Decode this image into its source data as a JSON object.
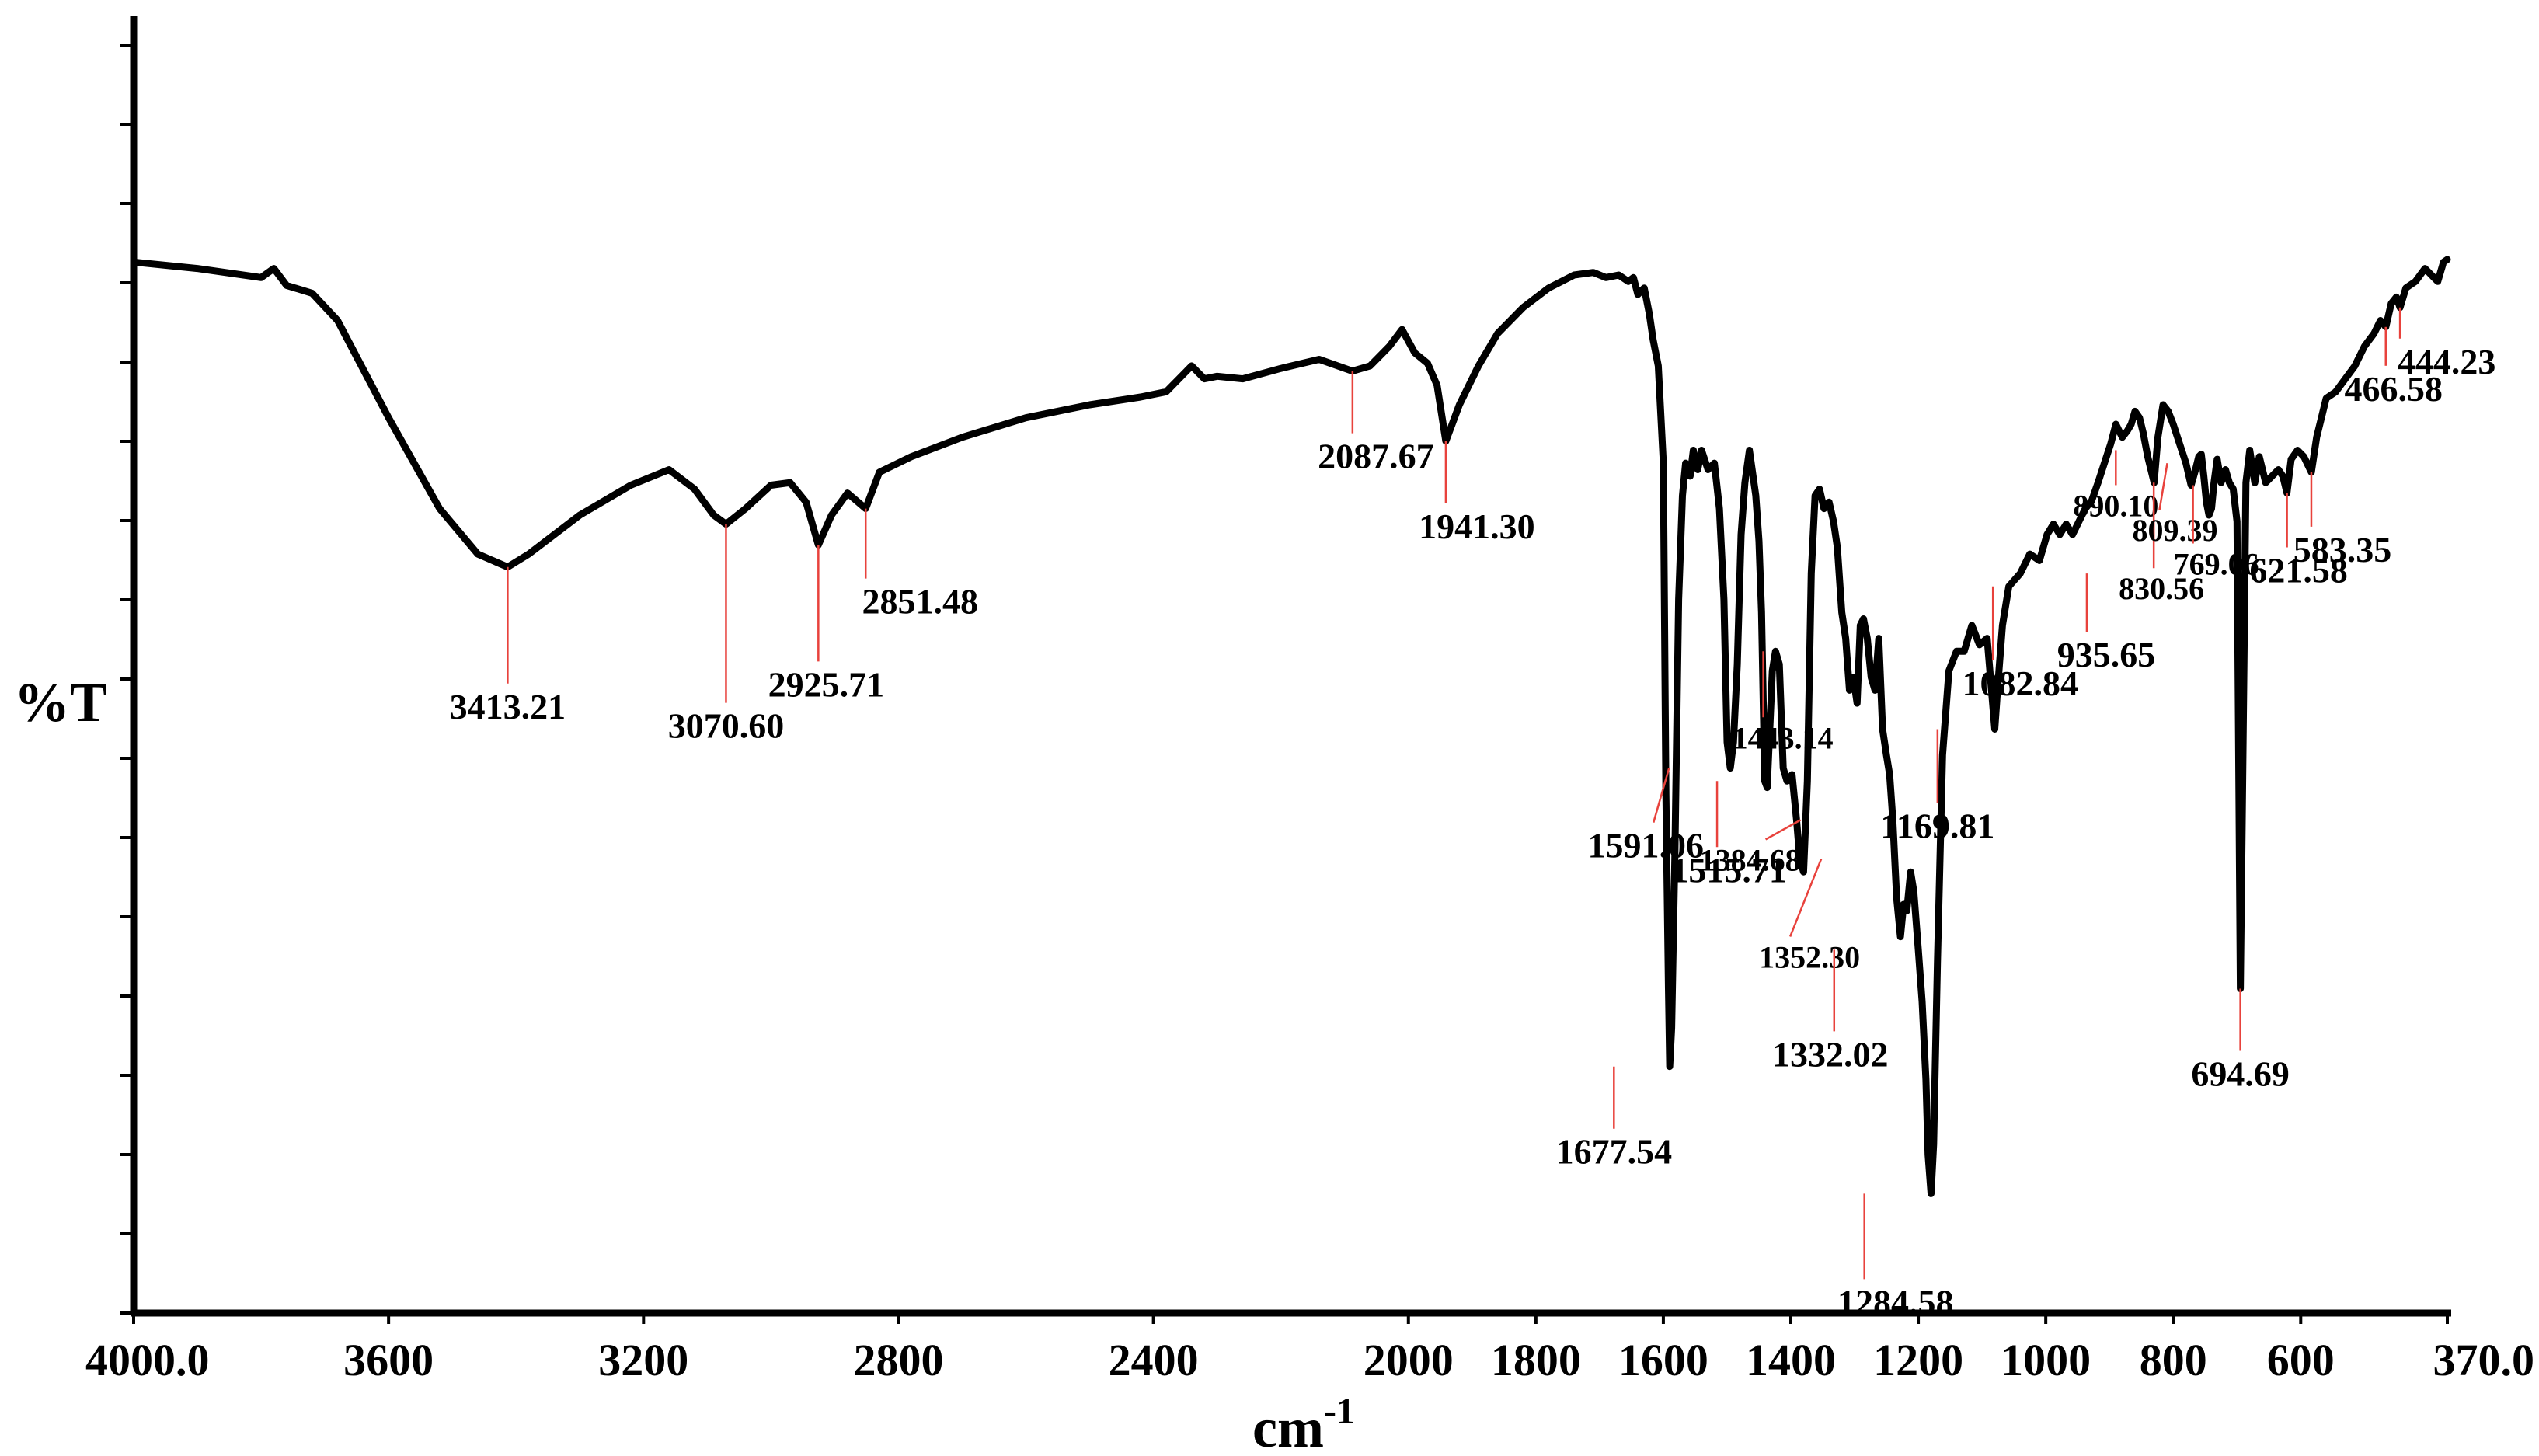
{
  "chart_data": {
    "type": "line",
    "xlabel": "cm",
    "xlabel_superscript": "-1",
    "ylabel": "%T",
    "xlim": [
      4000.0,
      370.0
    ],
    "ylim": [
      0,
      100
    ],
    "grid": false,
    "x_ticks": [
      "4000.0",
      "3600",
      "3200",
      "2800",
      "2400",
      "2000",
      "1800",
      "1600",
      "1400",
      "1200",
      "1000",
      "800",
      "600",
      "370.0"
    ],
    "series": [
      {
        "color": "#000000",
        "points": [
          [
            4000,
            81
          ],
          [
            3900,
            80.5
          ],
          [
            3800,
            79.8
          ],
          [
            3780,
            80.5
          ],
          [
            3760,
            79.2
          ],
          [
            3720,
            78.6
          ],
          [
            3680,
            76.5
          ],
          [
            3600,
            69
          ],
          [
            3520,
            62
          ],
          [
            3460,
            58.5
          ],
          [
            3413.21,
            57.5
          ],
          [
            3380,
            58.5
          ],
          [
            3300,
            61.5
          ],
          [
            3220,
            63.8
          ],
          [
            3160,
            65.0
          ],
          [
            3120,
            63.5
          ],
          [
            3090,
            61.5
          ],
          [
            3070.6,
            60.8
          ],
          [
            3040,
            62.0
          ],
          [
            3000,
            63.8
          ],
          [
            2970,
            64.0
          ],
          [
            2945,
            62.5
          ],
          [
            2925.71,
            59.2
          ],
          [
            2905,
            61.5
          ],
          [
            2880,
            63.2
          ],
          [
            2851.48,
            62.0
          ],
          [
            2830,
            64.8
          ],
          [
            2780,
            66.0
          ],
          [
            2700,
            67.5
          ],
          [
            2600,
            69.0
          ],
          [
            2500,
            70.0
          ],
          [
            2420,
            70.6
          ],
          [
            2380,
            71.0
          ],
          [
            2360,
            72.0
          ],
          [
            2340,
            73.0
          ],
          [
            2320,
            72.0
          ],
          [
            2300,
            72.2
          ],
          [
            2260,
            72.0
          ],
          [
            2200,
            72.8
          ],
          [
            2140,
            73.5
          ],
          [
            2087.67,
            72.6
          ],
          [
            2060,
            73.0
          ],
          [
            2030,
            74.5
          ],
          [
            2010,
            75.8
          ],
          [
            1990,
            74.0
          ],
          [
            1970,
            73.2
          ],
          [
            1955,
            71.5
          ],
          [
            1941.3,
            67.2
          ],
          [
            1920,
            70.0
          ],
          [
            1890,
            73.0
          ],
          [
            1860,
            75.5
          ],
          [
            1820,
            77.5
          ],
          [
            1780,
            79.0
          ],
          [
            1740,
            80.0
          ],
          [
            1710,
            80.2
          ],
          [
            1690,
            79.8
          ],
          [
            1670,
            80.0
          ],
          [
            1655,
            79.5
          ],
          [
            1647,
            79.8
          ],
          [
            1640,
            78.5
          ],
          [
            1630,
            79.0
          ],
          [
            1622,
            77.0
          ],
          [
            1616,
            75.0
          ],
          [
            1608,
            73.0
          ],
          [
            1600,
            65.5
          ],
          [
            1596,
            40.0
          ],
          [
            1592,
            25.0
          ],
          [
            1590,
            19.0
          ],
          [
            1587,
            22.0
          ],
          [
            1582,
            35.0
          ],
          [
            1576,
            55.0
          ],
          [
            1570,
            63.0
          ],
          [
            1565,
            65.5
          ],
          [
            1558,
            64.5
          ],
          [
            1553,
            66.5
          ],
          [
            1546,
            65.0
          ],
          [
            1540,
            66.5
          ],
          [
            1530,
            65.0
          ],
          [
            1520,
            65.5
          ],
          [
            1512,
            62.0
          ],
          [
            1505,
            55.0
          ],
          [
            1500,
            44.0
          ],
          [
            1495,
            42.0
          ],
          [
            1490,
            44.0
          ],
          [
            1484,
            50.0
          ],
          [
            1478,
            60.0
          ],
          [
            1472,
            64.0
          ],
          [
            1465,
            66.5
          ],
          [
            1455,
            63.0
          ],
          [
            1450,
            59.5
          ],
          [
            1446,
            54.0
          ],
          [
            1441,
            41.0
          ],
          [
            1437,
            40.5
          ],
          [
            1433,
            45.0
          ],
          [
            1429,
            49.5
          ],
          [
            1424,
            51.0
          ],
          [
            1418,
            50.0
          ],
          [
            1412,
            42.0
          ],
          [
            1406,
            41.0
          ],
          [
            1398,
            41.5
          ],
          [
            1391,
            38.0
          ],
          [
            1386,
            35.0
          ],
          [
            1380,
            34.0
          ],
          [
            1374,
            41.0
          ],
          [
            1368,
            57.0
          ],
          [
            1362,
            63.0
          ],
          [
            1355,
            63.5
          ],
          [
            1348,
            62.0
          ],
          [
            1340,
            62.5
          ],
          [
            1333,
            61.0
          ],
          [
            1327,
            59.0
          ],
          [
            1320,
            54.0
          ],
          [
            1314,
            52.0
          ],
          [
            1308,
            48.0
          ],
          [
            1302,
            49.0
          ],
          [
            1296,
            47.0
          ],
          [
            1291,
            53.0
          ],
          [
            1286,
            53.5
          ],
          [
            1280,
            52.0
          ],
          [
            1274,
            49.0
          ],
          [
            1268,
            48.0
          ],
          [
            1262,
            52.0
          ],
          [
            1256,
            45.0
          ],
          [
            1250,
            43.0
          ],
          [
            1245,
            41.5
          ],
          [
            1240,
            38.0
          ],
          [
            1234,
            32.0
          ],
          [
            1228,
            29.0
          ],
          [
            1223,
            31.5
          ],
          [
            1218,
            31.0
          ],
          [
            1212,
            34.0
          ],
          [
            1207,
            32.5
          ],
          [
            1200,
            28.0
          ],
          [
            1194,
            24.0
          ],
          [
            1188,
            18.0
          ],
          [
            1184.58,
            12.2
          ],
          [
            1180,
            9.2
          ],
          [
            1176,
            13.0
          ],
          [
            1170,
            27.0
          ],
          [
            1162,
            43.0
          ],
          [
            1152,
            49.5
          ],
          [
            1140,
            51.0
          ],
          [
            1128,
            51.0
          ],
          [
            1116,
            53.0
          ],
          [
            1104,
            51.5
          ],
          [
            1092,
            52.0
          ],
          [
            1080,
            45.0
          ],
          [
            1075,
            48.5
          ],
          [
            1068,
            53.0
          ],
          [
            1058,
            56.0
          ],
          [
            1040,
            57.0
          ],
          [
            1025,
            58.5
          ],
          [
            1010,
            58.0
          ],
          [
            998,
            60.0
          ],
          [
            988,
            60.8
          ],
          [
            978,
            60.0
          ],
          [
            968,
            60.8
          ],
          [
            958,
            60.0
          ],
          [
            948,
            61.0
          ],
          [
            938,
            62.0
          ],
          [
            928,
            62.6
          ],
          [
            918,
            64.0
          ],
          [
            908,
            65.5
          ],
          [
            898,
            67.0
          ],
          [
            890,
            68.5
          ],
          [
            880,
            67.5
          ],
          [
            872,
            68.0
          ],
          [
            866,
            68.5
          ],
          [
            860,
            69.5
          ],
          [
            853,
            69.0
          ],
          [
            847,
            67.8
          ],
          [
            840,
            66.0
          ],
          [
            835,
            65.0
          ],
          [
            830,
            64.0
          ],
          [
            824,
            67.5
          ],
          [
            816,
            70.0
          ],
          [
            808,
            69.5
          ],
          [
            800,
            68.5
          ],
          [
            790,
            67.0
          ],
          [
            780,
            65.5
          ],
          [
            772,
            63.8
          ],
          [
            765,
            65.0
          ],
          [
            760,
            66.0
          ],
          [
            756,
            66.2
          ],
          [
            752,
            64.5
          ],
          [
            748,
            62.5
          ],
          [
            744,
            61.5
          ],
          [
            740,
            62.0
          ],
          [
            736,
            64.0
          ],
          [
            731,
            65.8
          ],
          [
            725,
            64.0
          ],
          [
            718,
            65.0
          ],
          [
            712,
            64.0
          ],
          [
            706,
            63.5
          ],
          [
            700,
            61.0
          ],
          [
            694.69,
            25.0
          ],
          [
            690,
            46.0
          ],
          [
            686,
            64.0
          ],
          [
            680,
            66.5
          ],
          [
            672,
            64.0
          ],
          [
            665,
            66.0
          ],
          [
            655,
            64.0
          ],
          [
            645,
            64.5
          ],
          [
            635,
            65.0
          ],
          [
            628,
            64.5
          ],
          [
            621.58,
            63.2
          ],
          [
            615,
            65.8
          ],
          [
            605,
            66.5
          ],
          [
            595,
            66.0
          ],
          [
            583.35,
            64.8
          ],
          [
            575,
            67.5
          ],
          [
            560,
            70.5
          ],
          [
            545,
            71.0
          ],
          [
            530,
            72.0
          ],
          [
            515,
            73.0
          ],
          [
            500,
            74.5
          ],
          [
            485,
            75.5
          ],
          [
            475,
            76.5
          ],
          [
            466.58,
            76.0
          ],
          [
            458,
            77.8
          ],
          [
            450,
            78.3
          ],
          [
            444.23,
            77.5
          ],
          [
            435,
            79.0
          ],
          [
            420,
            79.5
          ],
          [
            405,
            80.5
          ],
          [
            395,
            80.0
          ],
          [
            385,
            79.5
          ],
          [
            376,
            81.0
          ],
          [
            370,
            81.2
          ]
        ]
      }
    ],
    "annotations": [
      {
        "label": "3413.21",
        "x": 3413.21,
        "y": 57.5
      },
      {
        "label": "3070.60",
        "x": 3070.6,
        "y": 60.8
      },
      {
        "label": "2925.71",
        "x": 2925.71,
        "y": 59.2
      },
      {
        "label": "2851.48",
        "x": 2851.48,
        "y": 62.0
      },
      {
        "label": "2087.67",
        "x": 2087.67,
        "y": 72.6
      },
      {
        "label": "1941.30",
        "x": 1941.3,
        "y": 67.2
      },
      {
        "label": "1677.54",
        "x": 1677.54,
        "y": 19.0
      },
      {
        "label": "1591.06",
        "x": 1591.06,
        "y": 42.0
      },
      {
        "label": "1515.71",
        "x": 1515.71,
        "y": 41.0
      },
      {
        "label": "1443.14",
        "x": 1443.14,
        "y": 51.0
      },
      {
        "label": "1384.68",
        "x": 1384.68,
        "y": 38.0
      },
      {
        "label": "1352.30",
        "x": 1352.3,
        "y": 35.0
      },
      {
        "label": "1332.02",
        "x": 1332.02,
        "y": 28.0
      },
      {
        "label": "1284.58",
        "x": 1284.58,
        "y": 9.2
      },
      {
        "label": "1169.81",
        "x": 1169.81,
        "y": 45.0
      },
      {
        "label": "1082.84",
        "x": 1082.84,
        "y": 56.0
      },
      {
        "label": "935.65",
        "x": 935.65,
        "y": 57.0
      },
      {
        "label": "890.10",
        "x": 890.1,
        "y": 66.5
      },
      {
        "label": "830.56",
        "x": 830.56,
        "y": 64.0
      },
      {
        "label": "809.39",
        "x": 809.39,
        "y": 65.5
      },
      {
        "label": "769.06",
        "x": 769.06,
        "y": 63.8
      },
      {
        "label": "694.69",
        "x": 694.69,
        "y": 25.0
      },
      {
        "label": "621.58",
        "x": 621.58,
        "y": 63.2
      },
      {
        "label": "583.35",
        "x": 583.35,
        "y": 64.8
      },
      {
        "label": "466.58",
        "x": 466.58,
        "y": 76.0
      },
      {
        "label": "444.23",
        "x": 444.23,
        "y": 77.5
      }
    ]
  }
}
